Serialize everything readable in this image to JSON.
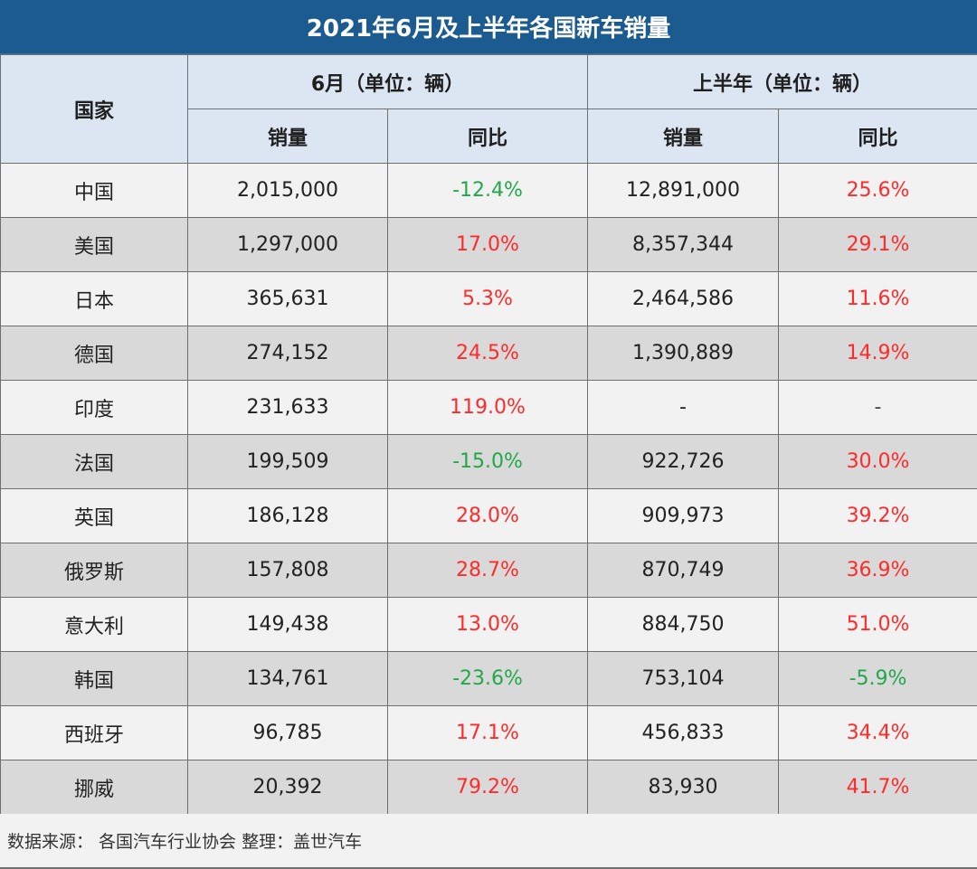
{
  "title": "2021年6月及上半年各国新车销量",
  "header": {
    "country": "国家",
    "june_group": "6月（单位：辆）",
    "h1_group": "上半年（单位：辆）",
    "june_sales": "销量",
    "june_yoy": "同比",
    "h1_sales": "销量",
    "h1_yoy": "同比"
  },
  "rows": [
    {
      "country": "中国",
      "june_sales": "2,015,000",
      "june_yoy": "-12.4%",
      "h1_sales": "12,891,000",
      "h1_yoy": "25.6%"
    },
    {
      "country": "美国",
      "june_sales": "1,297,000",
      "june_yoy": "17.0%",
      "h1_sales": "8,357,344",
      "h1_yoy": "29.1%"
    },
    {
      "country": "日本",
      "june_sales": "365,631",
      "june_yoy": "5.3%",
      "h1_sales": "2,464,586",
      "h1_yoy": "11.6%"
    },
    {
      "country": "德国",
      "june_sales": "274,152",
      "june_yoy": "24.5%",
      "h1_sales": "1,390,889",
      "h1_yoy": "14.9%"
    },
    {
      "country": "印度",
      "june_sales": "231,633",
      "june_yoy": "119.0%",
      "h1_sales": "-",
      "h1_yoy": "-"
    },
    {
      "country": "法国",
      "june_sales": "199,509",
      "june_yoy": "-15.0%",
      "h1_sales": "922,726",
      "h1_yoy": "30.0%"
    },
    {
      "country": "英国",
      "june_sales": "186,128",
      "june_yoy": "28.0%",
      "h1_sales": "909,973",
      "h1_yoy": "39.2%"
    },
    {
      "country": "俄罗斯",
      "june_sales": "157,808",
      "june_yoy": "28.7%",
      "h1_sales": "870,749",
      "h1_yoy": "36.9%"
    },
    {
      "country": "意大利",
      "june_sales": "149,438",
      "june_yoy": "13.0%",
      "h1_sales": "884,750",
      "h1_yoy": "51.0%"
    },
    {
      "country": "韩国",
      "june_sales": "134,761",
      "june_yoy": "-23.6%",
      "h1_sales": "753,104",
      "h1_yoy": "-5.9%"
    },
    {
      "country": "西班牙",
      "june_sales": "96,785",
      "june_yoy": "17.1%",
      "h1_sales": "456,833",
      "h1_yoy": "34.4%"
    },
    {
      "country": "挪威",
      "june_sales": "20,392",
      "june_yoy": "79.2%",
      "h1_sales": "83,930",
      "h1_yoy": "41.7%"
    }
  ],
  "source": "数据来源： 各国汽车行业协会 整理：盖世汽车",
  "colors": {
    "title_bg": "#1c5b8f",
    "header_bg": "#dbe6f2",
    "row_light": "#f2f2f2",
    "row_dark": "#d9d9d9",
    "positive": "#ff2a2a",
    "negative": "#22a84a"
  }
}
